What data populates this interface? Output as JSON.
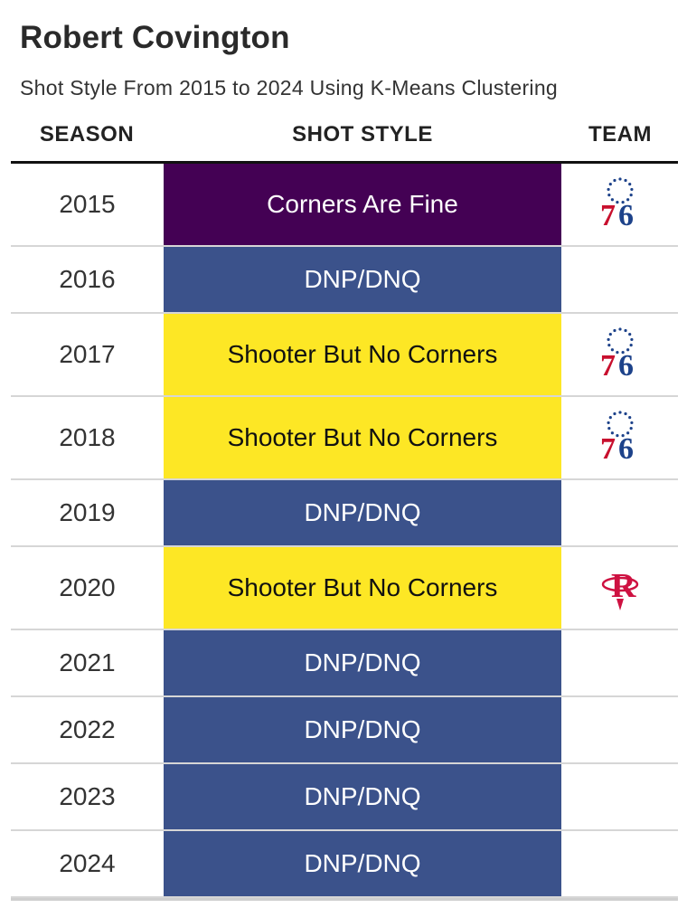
{
  "chart_data": {
    "type": "table",
    "title": "Robert Covington",
    "subtitle": "Shot Style From 2015 to 2024 Using K-Means Clustering",
    "columns": [
      "SEASON",
      "SHOT STYLE",
      "TEAM"
    ],
    "style_colors": {
      "Corners Are Fine": "#440154",
      "DNP/DNQ": "#3b528b",
      "Shooter But No Corners": "#fde725"
    },
    "style_text_colors": {
      "Corners Are Fine": "#ffffff",
      "DNP/DNQ": "#ffffff",
      "Shooter But No Corners": "#111111"
    },
    "team_icons": {
      "76ers": "76ers-logo-icon",
      "Rockets": "rockets-logo-icon"
    },
    "rows": [
      {
        "season": "2015",
        "style": "Corners Are Fine",
        "team": "76ers"
      },
      {
        "season": "2016",
        "style": "DNP/DNQ",
        "team": ""
      },
      {
        "season": "2017",
        "style": "Shooter But No Corners",
        "team": "76ers"
      },
      {
        "season": "2018",
        "style": "Shooter But No Corners",
        "team": "76ers"
      },
      {
        "season": "2019",
        "style": "DNP/DNQ",
        "team": ""
      },
      {
        "season": "2020",
        "style": "Shooter But No Corners",
        "team": "Rockets"
      },
      {
        "season": "2021",
        "style": "DNP/DNQ",
        "team": ""
      },
      {
        "season": "2022",
        "style": "DNP/DNQ",
        "team": ""
      },
      {
        "season": "2023",
        "style": "DNP/DNQ",
        "team": ""
      },
      {
        "season": "2024",
        "style": "DNP/DNQ",
        "team": ""
      }
    ]
  }
}
